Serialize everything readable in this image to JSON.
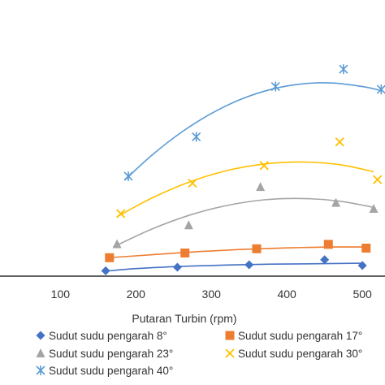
{
  "chart_data": {
    "type": "scatter",
    "title": "",
    "xlabel": "Putaran Turbin (rpm)",
    "ylabel": "",
    "xlim": [
      20,
      530
    ],
    "ylim": [
      0,
      1
    ],
    "x_ticks": [
      100,
      200,
      300,
      400,
      500
    ],
    "x_tick_labels": [
      "100",
      "200",
      "300",
      "400",
      "500"
    ],
    "y_axis_visible": false,
    "grid": false,
    "trendline": "polynomial",
    "legend_position": "bottom",
    "series": [
      {
        "name": "Sudut sudu pengarah 8°",
        "marker": "diamond",
        "color": "#4472c4",
        "points": [
          [
            160,
            0.024
          ],
          [
            255,
            0.04
          ],
          [
            350,
            0.051
          ],
          [
            450,
            0.074
          ],
          [
            500,
            0.048
          ]
        ],
        "trend": [
          [
            155,
            0.021
          ],
          [
            200,
            0.034
          ],
          [
            260,
            0.044
          ],
          [
            320,
            0.05
          ],
          [
            380,
            0.054
          ],
          [
            440,
            0.056
          ],
          [
            500,
            0.058
          ]
        ]
      },
      {
        "name": "Sudut sudu pengarah 17°",
        "marker": "square",
        "color": "#ed7d31",
        "points": [
          [
            165,
            0.083
          ],
          [
            265,
            0.104
          ],
          [
            360,
            0.123
          ],
          [
            455,
            0.143
          ],
          [
            505,
            0.126
          ]
        ],
        "trend": [
          [
            160,
            0.082
          ],
          [
            220,
            0.096
          ],
          [
            280,
            0.11
          ],
          [
            340,
            0.12
          ],
          [
            400,
            0.127
          ],
          [
            460,
            0.131
          ],
          [
            505,
            0.131
          ]
        ]
      },
      {
        "name": "Sudut sudu pengarah 23°",
        "marker": "triangle",
        "color": "#a5a5a5",
        "points": [
          [
            175,
            0.144
          ],
          [
            270,
            0.229
          ],
          [
            365,
            0.401
          ],
          [
            465,
            0.33
          ],
          [
            515,
            0.303
          ]
        ],
        "trend": [
          [
            170,
            0.131
          ],
          [
            220,
            0.21
          ],
          [
            270,
            0.273
          ],
          [
            320,
            0.317
          ],
          [
            370,
            0.343
          ],
          [
            420,
            0.349
          ],
          [
            470,
            0.337
          ],
          [
            515,
            0.309
          ]
        ]
      },
      {
        "name": "Sudut sudu pengarah 30°",
        "marker": "x",
        "color": "#ffc000",
        "points": [
          [
            180,
            0.281
          ],
          [
            275,
            0.418
          ],
          [
            370,
            0.497
          ],
          [
            470,
            0.603
          ],
          [
            520,
            0.434
          ]
        ],
        "trend": [
          [
            175,
            0.267
          ],
          [
            220,
            0.349
          ],
          [
            270,
            0.422
          ],
          [
            320,
            0.474
          ],
          [
            370,
            0.504
          ],
          [
            420,
            0.513
          ],
          [
            470,
            0.501
          ],
          [
            515,
            0.469
          ]
        ]
      },
      {
        "name": "Sudut sudu pengarah 40°",
        "marker": "asterisk",
        "color": "#5b9bd5",
        "points": [
          [
            190,
            0.449
          ],
          [
            280,
            0.626
          ],
          [
            385,
            0.852
          ],
          [
            475,
            0.93
          ],
          [
            525,
            0.839
          ]
        ],
        "trend": [
          [
            185,
            0.431
          ],
          [
            220,
            0.54
          ],
          [
            260,
            0.646
          ],
          [
            300,
            0.731
          ],
          [
            340,
            0.796
          ],
          [
            380,
            0.84
          ],
          [
            420,
            0.864
          ],
          [
            460,
            0.868
          ],
          [
            500,
            0.852
          ],
          [
            525,
            0.834
          ]
        ]
      }
    ]
  }
}
